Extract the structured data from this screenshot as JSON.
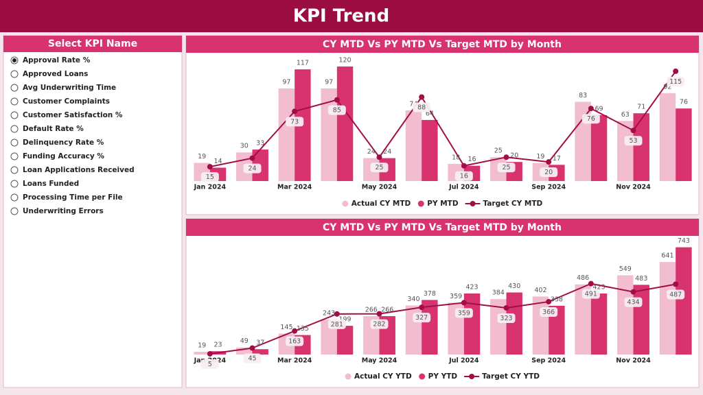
{
  "header": {
    "title": "KPI Trend"
  },
  "slicer": {
    "title": "Select KPI Name",
    "selected": 0,
    "items": [
      "Approval Rate %",
      "Approved Loans",
      "Avg Underwriting Time",
      "Customer Complaints",
      "Customer Satisfaction %",
      "Default Rate %",
      "Delinquency Rate %",
      "Funding Accuracy %",
      "Loan Applications Received",
      "Loans Funded",
      "Processing Time per File",
      "Underwriting Errors"
    ]
  },
  "chart_data": [
    {
      "type": "bar",
      "title": "CY MTD Vs PY MTD Vs Target MTD by Month",
      "categories": [
        "Jan 2024",
        null,
        "Mar 2024",
        null,
        "May 2024",
        null,
        "Jul 2024",
        null,
        "Sep 2024",
        null,
        "Nov 2024",
        null
      ],
      "ylim": [
        0,
        125
      ],
      "series": [
        {
          "name": "Actual CY MTD",
          "type": "bar",
          "color": "#f3bdd0",
          "values": [
            19,
            30,
            97,
            97,
            24,
            74,
            18,
            25,
            19,
            83,
            63,
            92
          ]
        },
        {
          "name": "PY MTD",
          "type": "bar",
          "color": "#d9336f",
          "values": [
            14,
            33,
            117,
            120,
            24,
            64,
            16,
            20,
            17,
            69,
            71,
            76
          ]
        },
        {
          "name": "Target CY MTD",
          "type": "line",
          "color": "#a10d48",
          "values": [
            15,
            24,
            73,
            85,
            25,
            88,
            16,
            25,
            20,
            76,
            53,
            115
          ]
        }
      ]
    },
    {
      "type": "bar",
      "title": "CY MTD Vs PY MTD Vs Target MTD by Month",
      "categories": [
        "Jan 2024",
        null,
        "Mar 2024",
        null,
        "May 2024",
        null,
        "Jul 2024",
        null,
        "Sep 2024",
        null,
        "Nov 2024",
        null
      ],
      "ylim": [
        0,
        760
      ],
      "series": [
        {
          "name": "Actual CY YTD",
          "type": "bar",
          "color": "#f3bdd0",
          "values": [
            19,
            49,
            145,
            243,
            266,
            340,
            359,
            384,
            402,
            486,
            549,
            641
          ]
        },
        {
          "name": "PY YTD",
          "type": "bar",
          "color": "#d9336f",
          "values": [
            23,
            37,
            135,
            199,
            266,
            378,
            423,
            430,
            338,
            423,
            483,
            743
          ]
        },
        {
          "name": "Target CY YTD",
          "type": "line",
          "color": "#a10d48",
          "values": [
            5,
            45,
            163,
            281,
            282,
            327,
            359,
            323,
            366,
            491,
            434,
            487
          ]
        }
      ]
    }
  ]
}
